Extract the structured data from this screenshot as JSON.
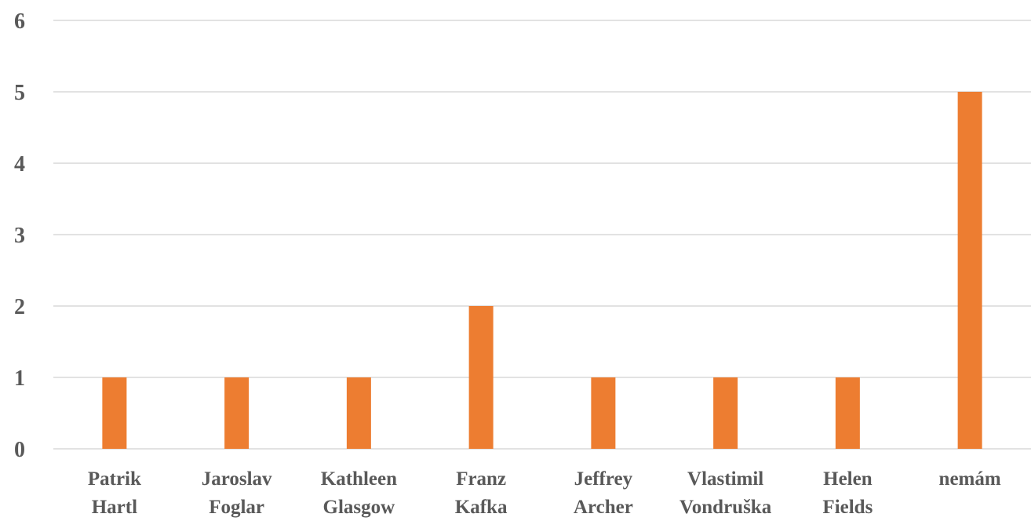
{
  "chart_data": {
    "type": "bar",
    "categories": [
      [
        "Patrik",
        "Hartl"
      ],
      [
        "Jaroslav",
        "Foglar"
      ],
      [
        "Kathleen",
        "Glasgow"
      ],
      [
        "Franz",
        "Kafka"
      ],
      [
        "Jeffrey",
        "Archer"
      ],
      [
        "Vlastimil",
        "Vondruška"
      ],
      [
        "Helen",
        "Fields"
      ],
      [
        "nemám"
      ]
    ],
    "values": [
      1,
      1,
      1,
      2,
      1,
      1,
      1,
      5
    ],
    "ylim": [
      0,
      6
    ],
    "yticks": [
      "0",
      "1",
      "2",
      "3",
      "4",
      "5",
      "6"
    ],
    "grid": true,
    "bar_color": "#ED7D31",
    "title": "",
    "xlabel": "",
    "ylabel": ""
  }
}
